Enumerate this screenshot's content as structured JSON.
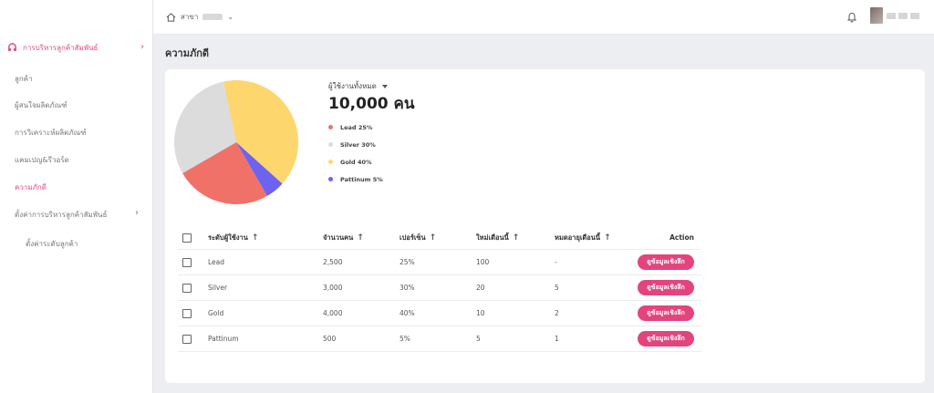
{
  "topbar": {
    "branch_label": "สาขา",
    "branch_chevron": "⌄",
    "bell_icon": "bell-icon"
  },
  "sidebar": {
    "main": {
      "label": "การบริหารลูกค้าสัมพันธ์",
      "icon": "crm-icon",
      "chevron": "›"
    },
    "items": [
      {
        "label": "ลูกค้า"
      },
      {
        "label": "ผู้สนใจผลิตภัณฑ์"
      },
      {
        "label": "การวิเคราะห์ผลิตภัณฑ์"
      },
      {
        "label": "แคมเปญ&รีวอร์ด"
      },
      {
        "label": "ความภักดี"
      },
      {
        "label": "ตั้งค่าการบริหารลูกค้าสัมพันธ์",
        "chevron": "›"
      },
      {
        "label": "ตั้งค่าระดับลูกค้า"
      }
    ]
  },
  "page": {
    "title": "ความภักดี"
  },
  "summary": {
    "label": "ผู้ใช้งานทั้งหมด",
    "value": "10,000 คน"
  },
  "legend": [
    {
      "label": "Lead 25%",
      "color": "#f07168"
    },
    {
      "label": "Silver 30%",
      "color": "#dcdcdc"
    },
    {
      "label": "Gold 40%",
      "color": "#fed66e"
    },
    {
      "label": "Pattinum 5%",
      "color": "#6c63f0"
    }
  ],
  "chart_data": {
    "type": "pie",
    "categories": [
      "Lead",
      "Silver",
      "Gold",
      "Pattinum"
    ],
    "values": [
      25,
      30,
      40,
      5
    ],
    "colors": [
      "#f07168",
      "#dcdcdc",
      "#fed66e",
      "#6c63f0"
    ]
  },
  "table": {
    "headers": [
      "ระดับผู้ใช้งาน",
      "จำนวนคน",
      "เปอร์เซ็น",
      "ใหม่เดือนนี้",
      "หมดอายุเดือนนี้",
      "Action"
    ],
    "rows": [
      {
        "level": "Lead",
        "count": "2,500",
        "percent": "25%",
        "new": "100",
        "expire": "-",
        "action": "ดูข้อมูลเชิงลึก"
      },
      {
        "level": "Silver",
        "count": "3,000",
        "percent": "30%",
        "new": "20",
        "expire": "5",
        "action": "ดูข้อมูลเชิงลึก"
      },
      {
        "level": "Gold",
        "count": "4,000",
        "percent": "40%",
        "new": "10",
        "expire": "2",
        "action": "ดูข้อมูลเชิงลึก"
      },
      {
        "level": "Pattinum",
        "count": "500",
        "percent": "5%",
        "new": "5",
        "expire": "1",
        "action": "ดูข้อมูลเชิงลึก"
      }
    ]
  }
}
